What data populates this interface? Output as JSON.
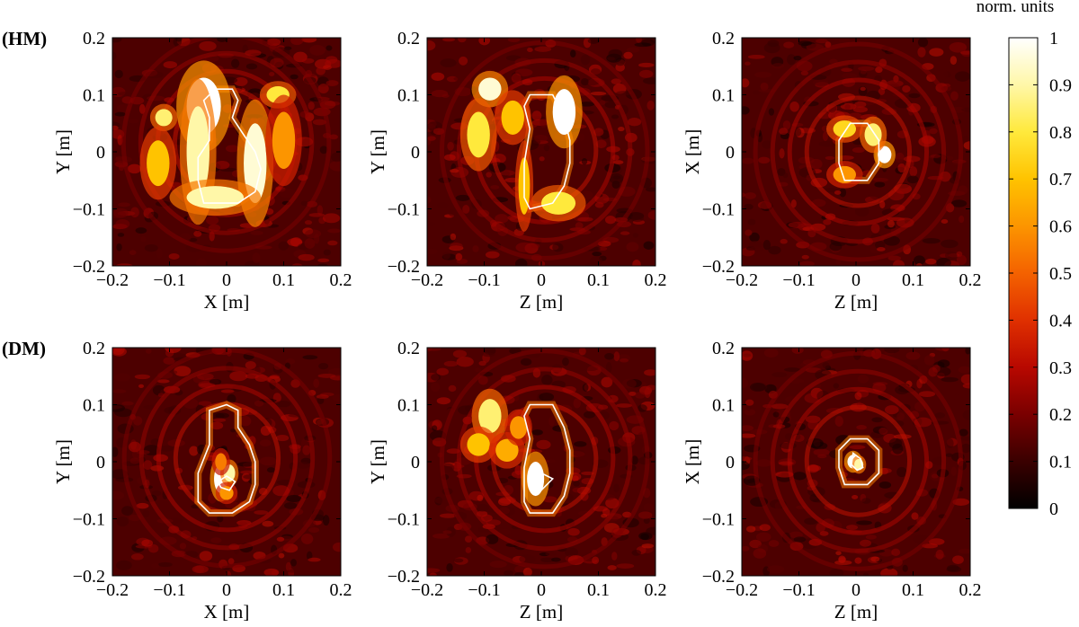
{
  "figure": {
    "row_labels": [
      "(HM)",
      "(DM)"
    ]
  },
  "colorbar": {
    "title": "norm. units",
    "ticks": [
      "0",
      "0.1",
      "0.2",
      "0.3",
      "0.4",
      "0.5",
      "0.6",
      "0.7",
      "0.8",
      "0.9",
      "1"
    ],
    "colormap": [
      "#000000",
      "#3a0000",
      "#7a0000",
      "#b80800",
      "#e03000",
      "#f46200",
      "#fc9500",
      "#ffc300",
      "#ffe93c",
      "#fff7a8",
      "#ffffff"
    ]
  },
  "chart_data": [
    {
      "type": "heatmap",
      "row": "(HM)",
      "xlabel": "X [m]",
      "ylabel": "Y [m]",
      "xlim": [
        -0.2,
        0.2
      ],
      "ylim": [
        -0.2,
        0.2
      ],
      "x_ticks": [
        "−0.2",
        "−0.1",
        "0",
        "0.1",
        "0.2"
      ],
      "y_ticks": [
        "−0.2",
        "−0.1",
        "0",
        "0.1",
        "0.2"
      ],
      "value_range": [
        0,
        1
      ],
      "contours": [
        [
          [
            -0.04,
            0.09
          ],
          [
            -0.02,
            0.11
          ],
          [
            0.01,
            0.11
          ],
          [
            0.02,
            0.09
          ],
          [
            0.01,
            0.06
          ],
          [
            0.03,
            0.03
          ],
          [
            0.05,
            0.0
          ],
          [
            0.06,
            -0.03
          ],
          [
            0.05,
            -0.07
          ],
          [
            0.02,
            -0.09
          ],
          [
            -0.04,
            -0.09
          ],
          [
            -0.05,
            -0.05
          ],
          [
            -0.05,
            -0.01
          ],
          [
            -0.03,
            0.02
          ],
          [
            -0.03,
            0.06
          ]
        ]
      ],
      "hotspots": [
        {
          "x": -0.04,
          "y": 0.08,
          "w": 0.03,
          "h": 0.05,
          "v": 1.0
        },
        {
          "x": -0.05,
          "y": 0.0,
          "w": 0.02,
          "h": 0.08,
          "v": 0.9
        },
        {
          "x": 0.05,
          "y": -0.02,
          "w": 0.02,
          "h": 0.07,
          "v": 0.95
        },
        {
          "x": -0.02,
          "y": -0.08,
          "w": 0.05,
          "h": 0.02,
          "v": 0.9
        },
        {
          "x": -0.11,
          "y": 0.06,
          "w": 0.015,
          "h": 0.015,
          "v": 0.85
        },
        {
          "x": 0.09,
          "y": 0.1,
          "w": 0.02,
          "h": 0.015,
          "v": 0.8
        },
        {
          "x": -0.12,
          "y": -0.02,
          "w": 0.02,
          "h": 0.04,
          "v": 0.7
        },
        {
          "x": 0.1,
          "y": 0.02,
          "w": 0.02,
          "h": 0.05,
          "v": 0.6
        }
      ]
    },
    {
      "type": "heatmap",
      "row": "(HM)",
      "xlabel": "Z [m]",
      "ylabel": "Y [m]",
      "xlim": [
        -0.2,
        0.2
      ],
      "ylim": [
        -0.2,
        0.2
      ],
      "x_ticks": [
        "−0.2",
        "−0.1",
        "0",
        "0.1",
        "0.2"
      ],
      "y_ticks": [
        "−0.2",
        "−0.1",
        "0",
        "0.1",
        "0.2"
      ],
      "value_range": [
        0,
        1
      ],
      "contours": [
        [
          [
            -0.02,
            0.1
          ],
          [
            0.02,
            0.1
          ],
          [
            0.04,
            0.06
          ],
          [
            0.05,
            0.02
          ],
          [
            0.05,
            -0.02
          ],
          [
            0.04,
            -0.06
          ],
          [
            0.02,
            -0.09
          ],
          [
            -0.02,
            -0.1
          ],
          [
            -0.03,
            -0.08
          ],
          [
            -0.03,
            -0.02
          ],
          [
            -0.02,
            0.04
          ],
          [
            -0.03,
            0.08
          ]
        ]
      ],
      "hotspots": [
        {
          "x": 0.04,
          "y": 0.07,
          "w": 0.02,
          "h": 0.04,
          "v": 1.0
        },
        {
          "x": -0.09,
          "y": 0.11,
          "w": 0.02,
          "h": 0.02,
          "v": 0.95
        },
        {
          "x": -0.11,
          "y": 0.03,
          "w": 0.02,
          "h": 0.04,
          "v": 0.8
        },
        {
          "x": 0.03,
          "y": -0.09,
          "w": 0.03,
          "h": 0.02,
          "v": 0.8
        },
        {
          "x": -0.05,
          "y": 0.06,
          "w": 0.02,
          "h": 0.03,
          "v": 0.7
        },
        {
          "x": -0.03,
          "y": -0.06,
          "w": 0.01,
          "h": 0.05,
          "v": 0.7
        }
      ]
    },
    {
      "type": "heatmap",
      "row": "(HM)",
      "xlabel": "Z [m]",
      "ylabel": "X [m]",
      "xlim": [
        -0.2,
        0.2
      ],
      "ylim": [
        -0.2,
        0.2
      ],
      "x_ticks": [
        "−0.2",
        "−0.1",
        "0",
        "0.1",
        "0.2"
      ],
      "y_ticks": [
        "−0.2",
        "−0.1",
        "0",
        "0.1",
        "0.2"
      ],
      "value_range": [
        0,
        1
      ],
      "contours": [
        [
          [
            -0.01,
            0.05
          ],
          [
            0.02,
            0.05
          ],
          [
            0.04,
            0.02
          ],
          [
            0.04,
            -0.02
          ],
          [
            0.02,
            -0.05
          ],
          [
            -0.02,
            -0.05
          ],
          [
            -0.03,
            -0.02
          ],
          [
            -0.03,
            0.02
          ]
        ]
      ],
      "hotspots": [
        {
          "x": 0.05,
          "y": -0.005,
          "w": 0.012,
          "h": 0.015,
          "v": 1.0
        },
        {
          "x": 0.03,
          "y": 0.03,
          "w": 0.015,
          "h": 0.02,
          "v": 0.85
        },
        {
          "x": -0.02,
          "y": 0.04,
          "w": 0.02,
          "h": 0.015,
          "v": 0.75
        },
        {
          "x": -0.02,
          "y": -0.04,
          "w": 0.02,
          "h": 0.015,
          "v": 0.6
        }
      ]
    },
    {
      "type": "heatmap",
      "row": "(DM)",
      "xlabel": "X [m]",
      "ylabel": "Y [m]",
      "xlim": [
        -0.2,
        0.2
      ],
      "ylim": [
        -0.2,
        0.2
      ],
      "x_ticks": [
        "−0.2",
        "−0.1",
        "0",
        "0.1",
        "0.2"
      ],
      "y_ticks": [
        "−0.2",
        "−0.1",
        "0",
        "0.1",
        "0.2"
      ],
      "value_range": [
        0,
        1
      ],
      "contours": [
        [
          [
            -0.03,
            0.09
          ],
          [
            0.0,
            0.1
          ],
          [
            0.02,
            0.09
          ],
          [
            0.02,
            0.06
          ],
          [
            0.04,
            0.03
          ],
          [
            0.05,
            0.0
          ],
          [
            0.05,
            -0.04
          ],
          [
            0.04,
            -0.07
          ],
          [
            0.01,
            -0.09
          ],
          [
            -0.03,
            -0.09
          ],
          [
            -0.05,
            -0.07
          ],
          [
            -0.05,
            -0.02
          ],
          [
            -0.03,
            0.03
          ],
          [
            -0.03,
            0.07
          ]
        ],
        [
          [
            -0.015,
            -0.035
          ],
          [
            0.0,
            -0.025
          ],
          [
            0.015,
            -0.035
          ],
          [
            0.005,
            -0.05
          ],
          [
            -0.01,
            -0.045
          ]
        ]
      ],
      "hotspots": [
        {
          "x": -0.01,
          "y": -0.03,
          "w": 0.012,
          "h": 0.025,
          "v": 1.0
        },
        {
          "x": 0.005,
          "y": -0.02,
          "w": 0.01,
          "h": 0.015,
          "v": 0.9
        },
        {
          "x": -0.01,
          "y": 0.0,
          "w": 0.01,
          "h": 0.015,
          "v": 0.55
        },
        {
          "x": 0.0,
          "y": -0.055,
          "w": 0.012,
          "h": 0.012,
          "v": 0.6
        }
      ]
    },
    {
      "type": "heatmap",
      "row": "(DM)",
      "xlabel": "Z [m]",
      "ylabel": "Y [m]",
      "xlim": [
        -0.2,
        0.2
      ],
      "ylim": [
        -0.2,
        0.2
      ],
      "x_ticks": [
        "−0.2",
        "−0.1",
        "0",
        "0.1",
        "0.2"
      ],
      "y_ticks": [
        "−0.2",
        "−0.1",
        "0",
        "0.1",
        "0.2"
      ],
      "value_range": [
        0,
        1
      ],
      "contours": [
        [
          [
            -0.02,
            0.1
          ],
          [
            0.02,
            0.1
          ],
          [
            0.04,
            0.06
          ],
          [
            0.05,
            0.02
          ],
          [
            0.05,
            -0.02
          ],
          [
            0.04,
            -0.06
          ],
          [
            0.02,
            -0.09
          ],
          [
            -0.02,
            -0.09
          ],
          [
            -0.03,
            -0.07
          ],
          [
            -0.03,
            -0.01
          ],
          [
            -0.02,
            0.04
          ],
          [
            -0.03,
            0.08
          ]
        ],
        [
          [
            -0.02,
            -0.03
          ],
          [
            0.0,
            -0.02
          ],
          [
            0.02,
            -0.03
          ],
          [
            0.0,
            -0.05
          ],
          [
            -0.02,
            -0.045
          ]
        ]
      ],
      "hotspots": [
        {
          "x": -0.01,
          "y": -0.03,
          "w": 0.015,
          "h": 0.03,
          "v": 1.0
        },
        {
          "x": -0.09,
          "y": 0.08,
          "w": 0.02,
          "h": 0.03,
          "v": 0.85
        },
        {
          "x": -0.11,
          "y": 0.03,
          "w": 0.02,
          "h": 0.02,
          "v": 0.7
        },
        {
          "x": -0.06,
          "y": 0.02,
          "w": 0.02,
          "h": 0.02,
          "v": 0.65
        },
        {
          "x": -0.04,
          "y": 0.06,
          "w": 0.015,
          "h": 0.02,
          "v": 0.6
        }
      ]
    },
    {
      "type": "heatmap",
      "row": "(DM)",
      "xlabel": "Z [m]",
      "ylabel": "X [m]",
      "xlim": [
        -0.2,
        0.2
      ],
      "ylim": [
        -0.2,
        0.2
      ],
      "x_ticks": [
        "−0.2",
        "−0.1",
        "0",
        "0.1",
        "0.2"
      ],
      "y_ticks": [
        "−0.2",
        "−0.1",
        "0",
        "0.1",
        "0.2"
      ],
      "value_range": [
        0,
        1
      ],
      "contours": [
        [
          [
            -0.01,
            0.04
          ],
          [
            0.02,
            0.04
          ],
          [
            0.04,
            0.02
          ],
          [
            0.04,
            -0.02
          ],
          [
            0.02,
            -0.04
          ],
          [
            -0.02,
            -0.04
          ],
          [
            -0.03,
            -0.01
          ],
          [
            -0.03,
            0.02
          ]
        ],
        [
          [
            -0.005,
            0.015
          ],
          [
            0.008,
            0.005
          ],
          [
            0.012,
            -0.01
          ],
          [
            0.002,
            -0.015
          ],
          [
            -0.008,
            -0.005
          ]
        ]
      ],
      "hotspots": [
        {
          "x": -0.005,
          "y": 0.0,
          "w": 0.01,
          "h": 0.012,
          "v": 1.0
        },
        {
          "x": 0.005,
          "y": -0.005,
          "w": 0.008,
          "h": 0.01,
          "v": 0.9
        }
      ]
    }
  ]
}
